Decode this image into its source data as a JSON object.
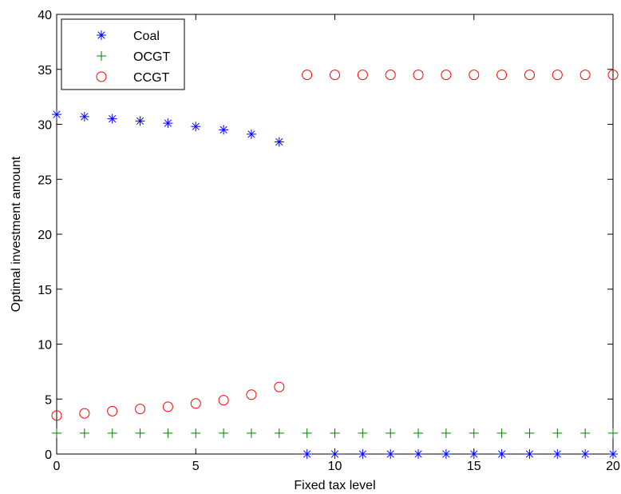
{
  "chart_data": {
    "type": "scatter",
    "xlabel": "Fixed tax level",
    "ylabel": "Optimal investment amount",
    "xlim": [
      0,
      20
    ],
    "ylim": [
      0,
      40
    ],
    "xticks": [
      0,
      5,
      10,
      15,
      20
    ],
    "yticks": [
      0,
      5,
      10,
      15,
      20,
      25,
      30,
      35,
      40
    ],
    "grid": false,
    "legend_position": "top-left",
    "series": [
      {
        "name": "Coal",
        "marker": "asterisk",
        "color": "#0000ff",
        "x": [
          0,
          1,
          2,
          3,
          4,
          5,
          6,
          7,
          8,
          9,
          10,
          11,
          12,
          13,
          14,
          15,
          16,
          17,
          18,
          19,
          20
        ],
        "y": [
          30.9,
          30.7,
          30.5,
          30.3,
          30.1,
          29.8,
          29.5,
          29.1,
          28.4,
          0,
          0,
          0,
          0,
          0,
          0,
          0,
          0,
          0,
          0,
          0,
          0
        ]
      },
      {
        "name": "OCGT",
        "marker": "plus",
        "color": "#008000",
        "x": [
          0,
          1,
          2,
          3,
          4,
          5,
          6,
          7,
          8,
          9,
          10,
          11,
          12,
          13,
          14,
          15,
          16,
          17,
          18,
          19,
          20
        ],
        "y": [
          1.9,
          1.9,
          1.9,
          1.9,
          1.9,
          1.9,
          1.9,
          1.9,
          1.9,
          1.9,
          1.9,
          1.9,
          1.9,
          1.9,
          1.9,
          1.9,
          1.9,
          1.9,
          1.9,
          1.9,
          1.9
        ]
      },
      {
        "name": "CCGT",
        "marker": "circle",
        "color": "#ff0000",
        "x": [
          0,
          1,
          2,
          3,
          4,
          5,
          6,
          7,
          8,
          9,
          10,
          11,
          12,
          13,
          14,
          15,
          16,
          17,
          18,
          19,
          20
        ],
        "y": [
          3.5,
          3.7,
          3.9,
          4.1,
          4.3,
          4.6,
          4.9,
          5.4,
          6.1,
          34.5,
          34.5,
          34.5,
          34.5,
          34.5,
          34.5,
          34.5,
          34.5,
          34.5,
          34.5,
          34.5,
          34.5
        ]
      }
    ]
  }
}
